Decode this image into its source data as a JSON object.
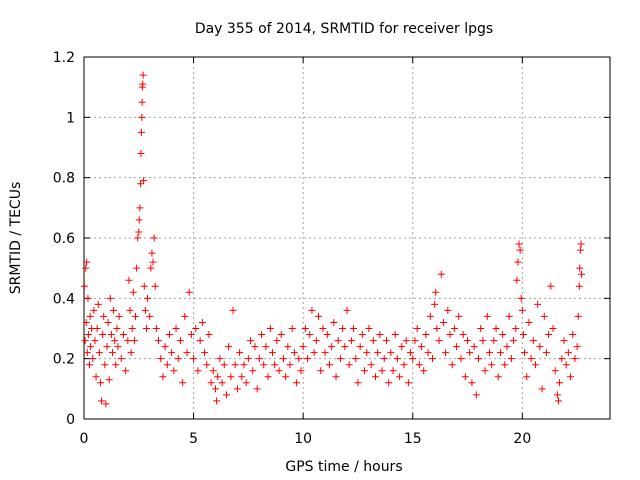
{
  "chart_data": {
    "type": "scatter",
    "title": "Day 355 of 2014, SRMTID for receiver lpgs",
    "xlabel": "GPS time / hours",
    "ylabel": "SRMTID / TECUs",
    "xlim": [
      0,
      24
    ],
    "ylim": [
      0,
      1.2
    ],
    "xticks": [
      0,
      5,
      10,
      15,
      20
    ],
    "xtick_labels": [
      "0",
      "5",
      "10",
      "15",
      "20"
    ],
    "yticks": [
      0,
      0.2,
      0.4,
      0.6,
      0.8,
      1.0,
      1.2
    ],
    "ytick_labels": [
      "0",
      "0.2",
      "0.4",
      "0.6",
      "0.8",
      "1",
      "1.2"
    ],
    "grid": true,
    "marker": "+",
    "colors": {
      "marker": "#ff0000",
      "grid": "#a0a0a0",
      "axis": "#000000"
    },
    "series": [
      {
        "name": "SRMTID",
        "points": [
          [
            0.02,
            0.44
          ],
          [
            0.05,
            0.26
          ],
          [
            0.08,
            0.5
          ],
          [
            0.1,
            0.32
          ],
          [
            0.12,
            0.52
          ],
          [
            0.15,
            0.22
          ],
          [
            0.18,
            0.4
          ],
          [
            0.2,
            0.28
          ],
          [
            0.25,
            0.18
          ],
          [
            0.28,
            0.34
          ],
          [
            0.3,
            0.24
          ],
          [
            0.35,
            0.3
          ],
          [
            0.4,
            0.2
          ],
          [
            0.45,
            0.36
          ],
          [
            0.5,
            0.26
          ],
          [
            0.55,
            0.14
          ],
          [
            0.6,
            0.3
          ],
          [
            0.65,
            0.38
          ],
          [
            0.7,
            0.22
          ],
          [
            0.75,
            0.12
          ],
          [
            0.8,
            0.06
          ],
          [
            0.85,
            0.28
          ],
          [
            0.9,
            0.34
          ],
          [
            0.95,
            0.18
          ],
          [
            1.0,
            0.05
          ],
          [
            1.05,
            0.24
          ],
          [
            1.1,
            0.32
          ],
          [
            1.15,
            0.13
          ],
          [
            1.2,
            0.4
          ],
          [
            1.25,
            0.28
          ],
          [
            1.3,
            0.22
          ],
          [
            1.35,
            0.36
          ],
          [
            1.4,
            0.26
          ],
          [
            1.45,
            0.18
          ],
          [
            1.5,
            0.3
          ],
          [
            1.55,
            0.24
          ],
          [
            1.6,
            0.34
          ],
          [
            1.7,
            0.2
          ],
          [
            1.8,
            0.28
          ],
          [
            1.9,
            0.16
          ],
          [
            2.0,
            0.26
          ],
          [
            2.05,
            0.46
          ],
          [
            2.1,
            0.36
          ],
          [
            2.15,
            0.22
          ],
          [
            2.2,
            0.3
          ],
          [
            2.25,
            0.42
          ],
          [
            2.3,
            0.26
          ],
          [
            2.35,
            0.34
          ],
          [
            2.4,
            0.5
          ],
          [
            2.45,
            0.6
          ],
          [
            2.5,
            0.62
          ],
          [
            2.52,
            0.66
          ],
          [
            2.55,
            0.7
          ],
          [
            2.58,
            0.78
          ],
          [
            2.6,
            0.88
          ],
          [
            2.62,
            0.95
          ],
          [
            2.64,
            1.0
          ],
          [
            2.65,
            1.05
          ],
          [
            2.66,
            1.1
          ],
          [
            2.68,
            1.11
          ],
          [
            2.7,
            1.14
          ],
          [
            2.72,
            0.79
          ],
          [
            2.75,
            0.44
          ],
          [
            2.8,
            0.36
          ],
          [
            2.85,
            0.3
          ],
          [
            2.9,
            0.4
          ],
          [
            3.0,
            0.34
          ],
          [
            3.05,
            0.5
          ],
          [
            3.1,
            0.55
          ],
          [
            3.15,
            0.52
          ],
          [
            3.2,
            0.6
          ],
          [
            3.25,
            0.44
          ],
          [
            3.3,
            0.3
          ],
          [
            3.4,
            0.26
          ],
          [
            3.5,
            0.2
          ],
          [
            3.6,
            0.14
          ],
          [
            3.7,
            0.24
          ],
          [
            3.8,
            0.18
          ],
          [
            3.9,
            0.28
          ],
          [
            4.0,
            0.22
          ],
          [
            4.1,
            0.16
          ],
          [
            4.2,
            0.3
          ],
          [
            4.3,
            0.2
          ],
          [
            4.4,
            0.26
          ],
          [
            4.5,
            0.12
          ],
          [
            4.6,
            0.34
          ],
          [
            4.7,
            0.22
          ],
          [
            4.8,
            0.42
          ],
          [
            4.9,
            0.28
          ],
          [
            5.0,
            0.2
          ],
          [
            5.1,
            0.3
          ],
          [
            5.2,
            0.16
          ],
          [
            5.3,
            0.26
          ],
          [
            5.4,
            0.32
          ],
          [
            5.5,
            0.22
          ],
          [
            5.6,
            0.18
          ],
          [
            5.7,
            0.28
          ],
          [
            5.8,
            0.12
          ],
          [
            5.9,
            0.16
          ],
          [
            6.0,
            0.1
          ],
          [
            6.05,
            0.06
          ],
          [
            6.1,
            0.14
          ],
          [
            6.2,
            0.2
          ],
          [
            6.3,
            0.12
          ],
          [
            6.4,
            0.18
          ],
          [
            6.5,
            0.08
          ],
          [
            6.6,
            0.24
          ],
          [
            6.7,
            0.14
          ],
          [
            6.8,
            0.36
          ],
          [
            6.9,
            0.18
          ],
          [
            7.0,
            0.1
          ],
          [
            7.1,
            0.22
          ],
          [
            7.2,
            0.14
          ],
          [
            7.3,
            0.18
          ],
          [
            7.4,
            0.12
          ],
          [
            7.5,
            0.2
          ],
          [
            7.6,
            0.26
          ],
          [
            7.7,
            0.16
          ],
          [
            7.8,
            0.24
          ],
          [
            7.9,
            0.1
          ],
          [
            8.0,
            0.2
          ],
          [
            8.1,
            0.28
          ],
          [
            8.2,
            0.18
          ],
          [
            8.3,
            0.24
          ],
          [
            8.4,
            0.14
          ],
          [
            8.5,
            0.3
          ],
          [
            8.6,
            0.22
          ],
          [
            8.7,
            0.18
          ],
          [
            8.8,
            0.26
          ],
          [
            8.9,
            0.16
          ],
          [
            9.0,
            0.28
          ],
          [
            9.1,
            0.2
          ],
          [
            9.2,
            0.14
          ],
          [
            9.3,
            0.24
          ],
          [
            9.4,
            0.18
          ],
          [
            9.5,
            0.3
          ],
          [
            9.6,
            0.22
          ],
          [
            9.7,
            0.12
          ],
          [
            9.8,
            0.2
          ],
          [
            9.9,
            0.16
          ],
          [
            10.0,
            0.24
          ],
          [
            10.1,
            0.3
          ],
          [
            10.2,
            0.2
          ],
          [
            10.3,
            0.28
          ],
          [
            10.4,
            0.36
          ],
          [
            10.5,
            0.22
          ],
          [
            10.6,
            0.26
          ],
          [
            10.7,
            0.34
          ],
          [
            10.8,
            0.16
          ],
          [
            10.9,
            0.3
          ],
          [
            11.0,
            0.22
          ],
          [
            11.1,
            0.28
          ],
          [
            11.2,
            0.18
          ],
          [
            11.3,
            0.24
          ],
          [
            11.4,
            0.32
          ],
          [
            11.5,
            0.14
          ],
          [
            11.6,
            0.26
          ],
          [
            11.7,
            0.2
          ],
          [
            11.8,
            0.3
          ],
          [
            11.9,
            0.24
          ],
          [
            12.0,
            0.36
          ],
          [
            12.1,
            0.18
          ],
          [
            12.2,
            0.26
          ],
          [
            12.3,
            0.3
          ],
          [
            12.4,
            0.2
          ],
          [
            12.5,
            0.12
          ],
          [
            12.6,
            0.24
          ],
          [
            12.7,
            0.28
          ],
          [
            12.8,
            0.16
          ],
          [
            12.9,
            0.22
          ],
          [
            13.0,
            0.3
          ],
          [
            13.1,
            0.18
          ],
          [
            13.2,
            0.26
          ],
          [
            13.3,
            0.14
          ],
          [
            13.4,
            0.22
          ],
          [
            13.5,
            0.28
          ],
          [
            13.6,
            0.16
          ],
          [
            13.7,
            0.2
          ],
          [
            13.8,
            0.26
          ],
          [
            13.9,
            0.12
          ],
          [
            14.0,
            0.22
          ],
          [
            14.1,
            0.16
          ],
          [
            14.2,
            0.28
          ],
          [
            14.3,
            0.2
          ],
          [
            14.4,
            0.14
          ],
          [
            14.5,
            0.24
          ],
          [
            14.6,
            0.18
          ],
          [
            14.7,
            0.26
          ],
          [
            14.8,
            0.12
          ],
          [
            14.9,
            0.22
          ],
          [
            15.0,
            0.2
          ],
          [
            15.1,
            0.26
          ],
          [
            15.2,
            0.3
          ],
          [
            15.3,
            0.18
          ],
          [
            15.4,
            0.24
          ],
          [
            15.5,
            0.16
          ],
          [
            15.6,
            0.28
          ],
          [
            15.7,
            0.22
          ],
          [
            15.8,
            0.34
          ],
          [
            15.9,
            0.2
          ],
          [
            16.0,
            0.38
          ],
          [
            16.05,
            0.42
          ],
          [
            16.1,
            0.3
          ],
          [
            16.2,
            0.26
          ],
          [
            16.3,
            0.48
          ],
          [
            16.4,
            0.32
          ],
          [
            16.5,
            0.22
          ],
          [
            16.6,
            0.36
          ],
          [
            16.7,
            0.28
          ],
          [
            16.8,
            0.18
          ],
          [
            16.9,
            0.3
          ],
          [
            17.0,
            0.24
          ],
          [
            17.1,
            0.34
          ],
          [
            17.2,
            0.2
          ],
          [
            17.3,
            0.28
          ],
          [
            17.4,
            0.14
          ],
          [
            17.5,
            0.26
          ],
          [
            17.6,
            0.22
          ],
          [
            17.7,
            0.12
          ],
          [
            17.8,
            0.24
          ],
          [
            17.9,
            0.08
          ],
          [
            18.0,
            0.2
          ],
          [
            18.1,
            0.3
          ],
          [
            18.2,
            0.26
          ],
          [
            18.3,
            0.16
          ],
          [
            18.4,
            0.34
          ],
          [
            18.5,
            0.22
          ],
          [
            18.6,
            0.18
          ],
          [
            18.7,
            0.26
          ],
          [
            18.8,
            0.3
          ],
          [
            18.9,
            0.14
          ],
          [
            19.0,
            0.22
          ],
          [
            19.1,
            0.28
          ],
          [
            19.2,
            0.18
          ],
          [
            19.3,
            0.24
          ],
          [
            19.4,
            0.34
          ],
          [
            19.5,
            0.2
          ],
          [
            19.6,
            0.26
          ],
          [
            19.7,
            0.3
          ],
          [
            19.75,
            0.46
          ],
          [
            19.8,
            0.52
          ],
          [
            19.85,
            0.58
          ],
          [
            19.9,
            0.56
          ],
          [
            19.95,
            0.4
          ],
          [
            20.0,
            0.36
          ],
          [
            20.05,
            0.28
          ],
          [
            20.1,
            0.22
          ],
          [
            20.2,
            0.14
          ],
          [
            20.3,
            0.32
          ],
          [
            20.4,
            0.2
          ],
          [
            20.5,
            0.26
          ],
          [
            20.6,
            0.18
          ],
          [
            20.7,
            0.38
          ],
          [
            20.8,
            0.24
          ],
          [
            20.9,
            0.1
          ],
          [
            21.0,
            0.34
          ],
          [
            21.1,
            0.22
          ],
          [
            21.2,
            0.28
          ],
          [
            21.3,
            0.44
          ],
          [
            21.4,
            0.3
          ],
          [
            21.5,
            0.16
          ],
          [
            21.6,
            0.08
          ],
          [
            21.65,
            0.06
          ],
          [
            21.7,
            0.12
          ],
          [
            21.8,
            0.2
          ],
          [
            21.9,
            0.26
          ],
          [
            22.0,
            0.18
          ],
          [
            22.1,
            0.22
          ],
          [
            22.2,
            0.14
          ],
          [
            22.3,
            0.28
          ],
          [
            22.4,
            0.2
          ],
          [
            22.5,
            0.24
          ],
          [
            22.55,
            0.34
          ],
          [
            22.6,
            0.44
          ],
          [
            22.62,
            0.5
          ],
          [
            22.65,
            0.56
          ],
          [
            22.68,
            0.58
          ],
          [
            22.7,
            0.48
          ]
        ]
      }
    ]
  }
}
